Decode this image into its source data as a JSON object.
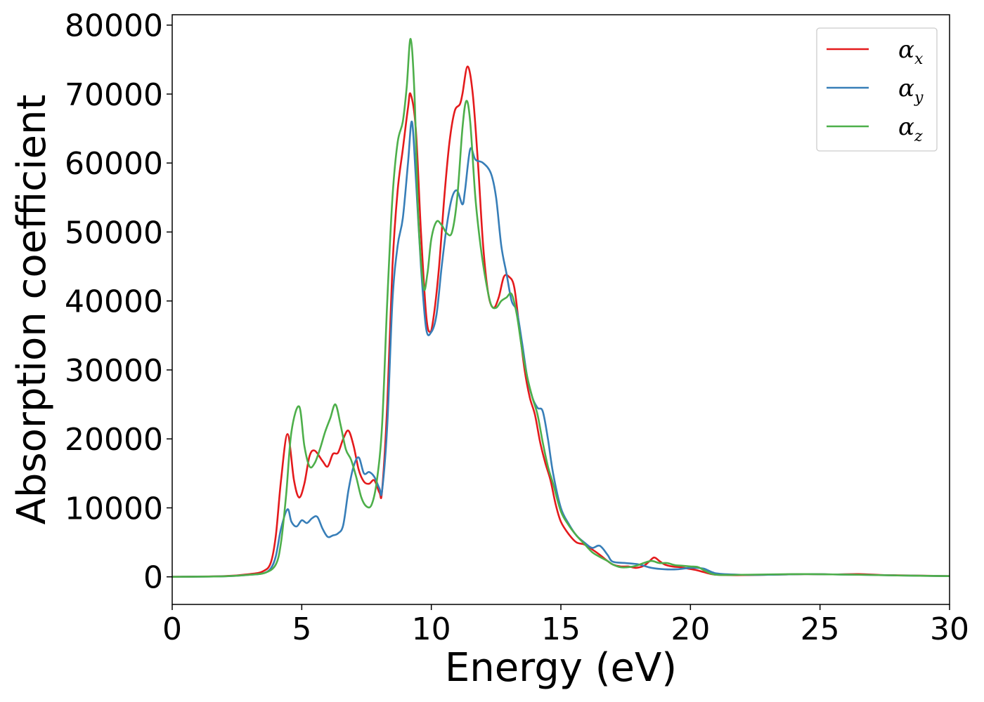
{
  "chart_data": {
    "type": "line",
    "xlabel": "Energy (eV)",
    "ylabel": "Absorption coefficient",
    "xlim": [
      0,
      30
    ],
    "ylim": [
      -4000,
      81500
    ],
    "xticks": [
      0,
      5,
      10,
      15,
      20,
      25,
      30
    ],
    "yticks": [
      0,
      10000,
      20000,
      30000,
      40000,
      50000,
      60000,
      70000,
      80000
    ],
    "grid": false,
    "legend_position": "top-right",
    "series": [
      {
        "name": "α_x",
        "symbol": "α",
        "subscript": "x",
        "color": "#e41a1c",
        "x": [
          0,
          2,
          3,
          3.5,
          3.8,
          4.0,
          4.2,
          4.45,
          4.7,
          4.9,
          5.1,
          5.3,
          5.5,
          5.8,
          6.0,
          6.2,
          6.4,
          6.6,
          6.8,
          7.0,
          7.2,
          7.4,
          7.6,
          7.8,
          8.0,
          8.1,
          8.3,
          8.5,
          8.7,
          8.9,
          9.1,
          9.2,
          9.4,
          9.6,
          9.8,
          9.95,
          10.1,
          10.3,
          10.5,
          10.7,
          10.9,
          11.1,
          11.2,
          11.4,
          11.6,
          11.8,
          12.0,
          12.2,
          12.4,
          12.6,
          12.8,
          13.0,
          13.2,
          13.4,
          13.6,
          13.8,
          14.0,
          14.2,
          14.4,
          14.6,
          14.8,
          15.0,
          15.3,
          15.6,
          15.9,
          16.2,
          16.5,
          16.8,
          17.0,
          17.3,
          17.6,
          17.9,
          18.2,
          18.4,
          18.6,
          18.8,
          19.0,
          19.3,
          19.6,
          19.9,
          20.2,
          20.5,
          21.0,
          22,
          23,
          24.5,
          25.5,
          26.5,
          27.5,
          28.5,
          30
        ],
        "y": [
          0,
          100,
          400,
          800,
          2000,
          6000,
          14000,
          20700,
          14000,
          11500,
          13500,
          17500,
          18300,
          16800,
          16000,
          17800,
          18000,
          20000,
          21200,
          19000,
          15500,
          13800,
          13500,
          14000,
          12200,
          12500,
          25000,
          45000,
          56000,
          62000,
          68000,
          70000,
          65000,
          50000,
          38000,
          35500,
          38000,
          45000,
          55000,
          63000,
          67500,
          68500,
          70000,
          74000,
          70000,
          60000,
          48000,
          41000,
          39000,
          40500,
          43500,
          43500,
          42000,
          36000,
          30000,
          26000,
          23500,
          19500,
          16500,
          14000,
          10500,
          8000,
          6200,
          5000,
          4700,
          4000,
          3200,
          2300,
          1800,
          1500,
          1500,
          1300,
          1600,
          2200,
          2800,
          2300,
          1800,
          1500,
          1400,
          1200,
          1000,
          700,
          300,
          250,
          300,
          400,
          350,
          400,
          250,
          200,
          100
        ]
      },
      {
        "name": "α_y",
        "symbol": "α",
        "subscript": "y",
        "color": "#377eb8",
        "x": [
          0,
          2,
          3,
          3.5,
          3.8,
          4.0,
          4.2,
          4.45,
          4.6,
          4.8,
          5.0,
          5.2,
          5.4,
          5.6,
          5.8,
          6.0,
          6.2,
          6.4,
          6.6,
          6.8,
          7.0,
          7.2,
          7.4,
          7.6,
          7.8,
          8.0,
          8.1,
          8.3,
          8.5,
          8.7,
          8.9,
          9.1,
          9.25,
          9.4,
          9.6,
          9.8,
          10.0,
          10.2,
          10.4,
          10.6,
          10.8,
          11.0,
          11.2,
          11.3,
          11.5,
          11.7,
          12.0,
          12.3,
          12.5,
          12.7,
          12.9,
          13.1,
          13.3,
          13.5,
          13.7,
          13.9,
          14.1,
          14.3,
          14.5,
          14.7,
          15.0,
          15.3,
          15.6,
          15.9,
          16.2,
          16.5,
          16.8,
          17.0,
          17.5,
          18.0,
          18.5,
          19.0,
          19.5,
          20.0,
          20.5,
          21.0,
          22,
          23,
          24.5,
          25.5,
          26.5,
          28,
          30
        ],
        "y": [
          0,
          80,
          300,
          500,
          1200,
          3000,
          7000,
          9800,
          8000,
          7300,
          8200,
          7800,
          8500,
          8700,
          7000,
          5800,
          6000,
          6300,
          7500,
          12500,
          16000,
          17300,
          15000,
          15200,
          14500,
          12800,
          12500,
          22000,
          40000,
          48000,
          52000,
          60000,
          66000,
          58000,
          45000,
          36000,
          35500,
          38000,
          45000,
          51000,
          55000,
          56000,
          54000,
          56000,
          62000,
          60500,
          60000,
          58500,
          55000,
          48000,
          44000,
          40000,
          38500,
          34000,
          29000,
          26000,
          24500,
          24000,
          20000,
          15000,
          10000,
          7700,
          6000,
          5000,
          4200,
          4500,
          3200,
          2200,
          2000,
          1800,
          1300,
          1100,
          1100,
          1300,
          1200,
          500,
          300,
          300,
          400,
          350,
          300,
          200,
          100
        ]
      },
      {
        "name": "α_z",
        "symbol": "α",
        "subscript": "z",
        "color": "#4daf4a",
        "x": [
          0,
          2,
          3,
          3.6,
          4.0,
          4.2,
          4.4,
          4.6,
          4.9,
          5.1,
          5.3,
          5.5,
          5.7,
          5.9,
          6.1,
          6.3,
          6.5,
          6.7,
          6.9,
          7.1,
          7.3,
          7.5,
          7.7,
          7.9,
          8.1,
          8.3,
          8.5,
          8.7,
          8.9,
          9.05,
          9.2,
          9.35,
          9.5,
          9.7,
          9.85,
          10.0,
          10.2,
          10.4,
          10.6,
          10.8,
          11.0,
          11.2,
          11.35,
          11.5,
          11.7,
          11.9,
          12.1,
          12.3,
          12.5,
          12.7,
          12.9,
          13.1,
          13.3,
          13.5,
          13.7,
          13.9,
          14.1,
          14.3,
          14.5,
          14.7,
          15.0,
          15.3,
          15.6,
          15.9,
          16.2,
          16.5,
          16.8,
          17.0,
          17.3,
          17.6,
          17.9,
          18.2,
          18.5,
          18.8,
          19.1,
          19.4,
          19.7,
          20.0,
          20.3,
          20.6,
          21.0,
          22,
          23,
          24.5,
          25.5,
          26.5,
          28,
          30
        ],
        "y": [
          0,
          80,
          300,
          600,
          1800,
          5000,
          12000,
          21000,
          24700,
          19000,
          16000,
          16500,
          18500,
          21000,
          23000,
          25000,
          22000,
          18500,
          17000,
          14500,
          11500,
          10200,
          10500,
          14000,
          22000,
          40000,
          55000,
          63000,
          66000,
          71000,
          78000,
          70000,
          52000,
          42000,
          44000,
          49000,
          51500,
          51000,
          49800,
          50000,
          55000,
          65000,
          69000,
          66000,
          55000,
          48000,
          43000,
          39500,
          39000,
          40000,
          40500,
          41000,
          38000,
          33000,
          29000,
          26000,
          23500,
          19500,
          16000,
          13500,
          9500,
          7500,
          6000,
          4800,
          3600,
          2900,
          2300,
          1800,
          1400,
          1400,
          1600,
          2000,
          2300,
          2000,
          2000,
          1700,
          1600,
          1500,
          1400,
          800,
          300,
          300,
          350,
          400,
          350,
          300,
          200,
          100
        ]
      }
    ]
  }
}
